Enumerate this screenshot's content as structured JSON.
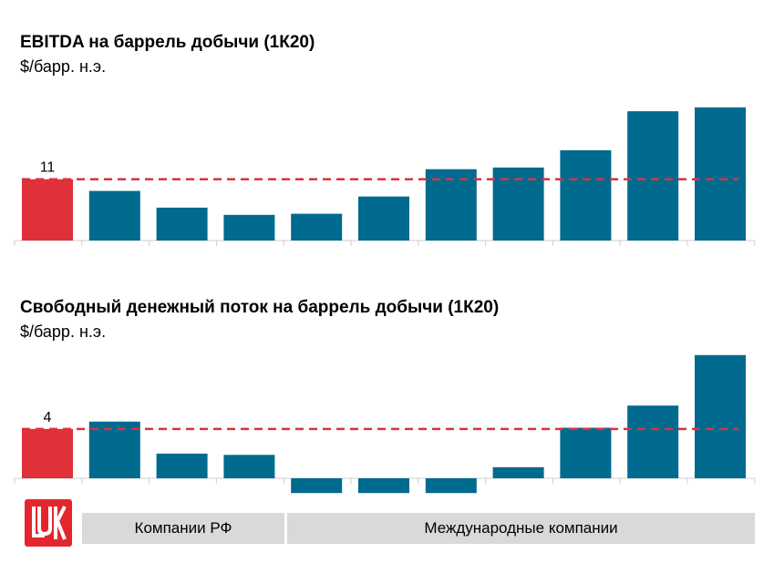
{
  "charts": {
    "ebitda": {
      "title": "EBITDA на баррель добычи (1К20)",
      "unit": "$/барр. н.э."
    },
    "fcf": {
      "title": "Свободный денежный поток на баррель добычи (1К20)",
      "unit": "$/барр. н.э."
    }
  },
  "groups": {
    "russian": "Компании РФ",
    "international": "Международные компании"
  },
  "logo": {
    "name": "lukoil-logo",
    "color": "#e3262e"
  },
  "colors": {
    "highlight": "#e0303a",
    "bar": "#006a8f",
    "reference": "#e0303a"
  },
  "chart_data": [
    {
      "type": "bar",
      "title": "EBITDA на баррель добычи (1К20)",
      "ylabel": "$/барр. н.э.",
      "values": [
        11,
        8.9,
        5.9,
        4.6,
        4.8,
        7.9,
        12.8,
        13.1,
        16.2,
        23.2,
        23.9
      ],
      "highlight_index": 0,
      "reference_value": 11,
      "reference_label": "11",
      "ylim": [
        0,
        26
      ]
    },
    {
      "type": "bar",
      "title": "Свободный денежный поток на баррель добычи (1К20)",
      "ylabel": "$/барр. н.э.",
      "values": [
        4,
        4.6,
        2.0,
        1.9,
        -1.2,
        -1.2,
        -1.2,
        0.9,
        4.1,
        5.9,
        10.0
      ],
      "highlight_index": 0,
      "reference_value": 4,
      "reference_label": "4",
      "ylim": [
        -2,
        10.5
      ]
    }
  ]
}
